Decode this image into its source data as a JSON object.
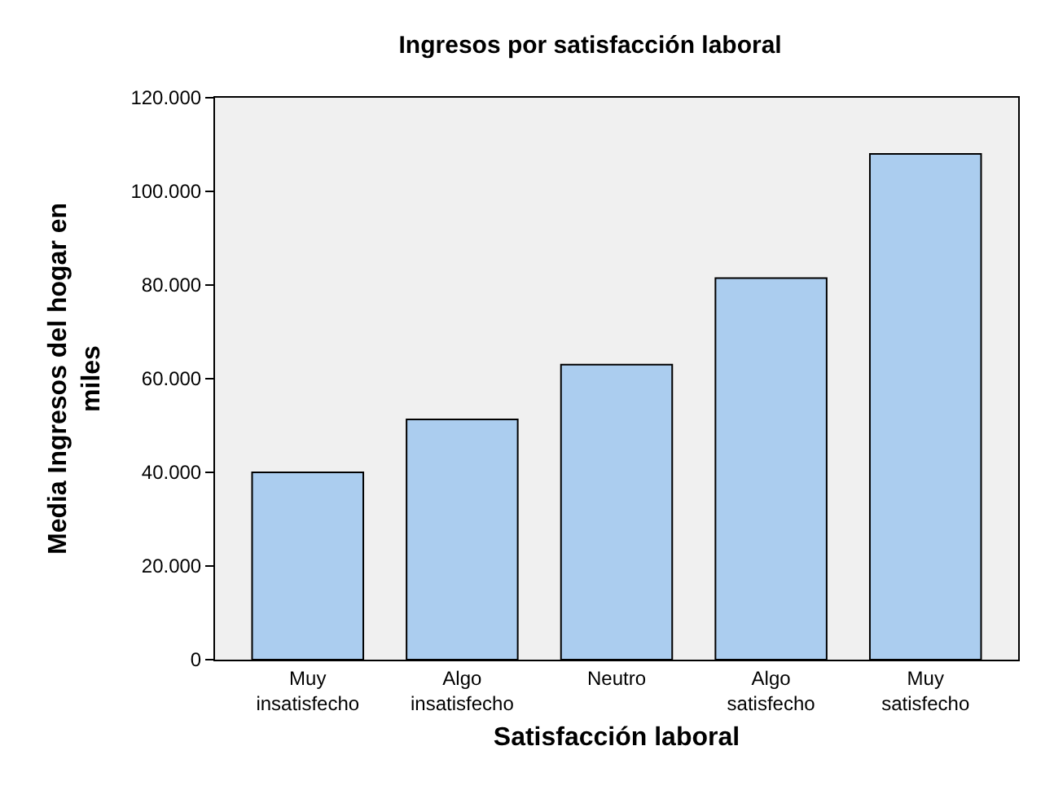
{
  "chart_data": {
    "type": "bar",
    "title": "Ingresos por satisfacción laboral",
    "xlabel": "Satisfacción laboral",
    "ylabel": "Media Ingresos del hogar en miles",
    "categories": [
      "Muy insatisfecho",
      "Algo insatisfecho",
      "Neutro",
      "Algo satisfecho",
      "Muy satisfecho"
    ],
    "values": [
      40000,
      51300,
      63000,
      81500,
      108000
    ],
    "color": "#abcdef",
    "ylim": [
      0,
      120000
    ],
    "yticks": [
      {
        "value": 0,
        "label": "0"
      },
      {
        "value": 20000,
        "label": "20.000"
      },
      {
        "value": 40000,
        "label": "40.000"
      },
      {
        "value": 60000,
        "label": "60.000"
      },
      {
        "value": 80000,
        "label": "80.000"
      },
      {
        "value": 100000,
        "label": "100.000"
      },
      {
        "value": 120000,
        "label": "120.000"
      }
    ],
    "grid": false
  }
}
